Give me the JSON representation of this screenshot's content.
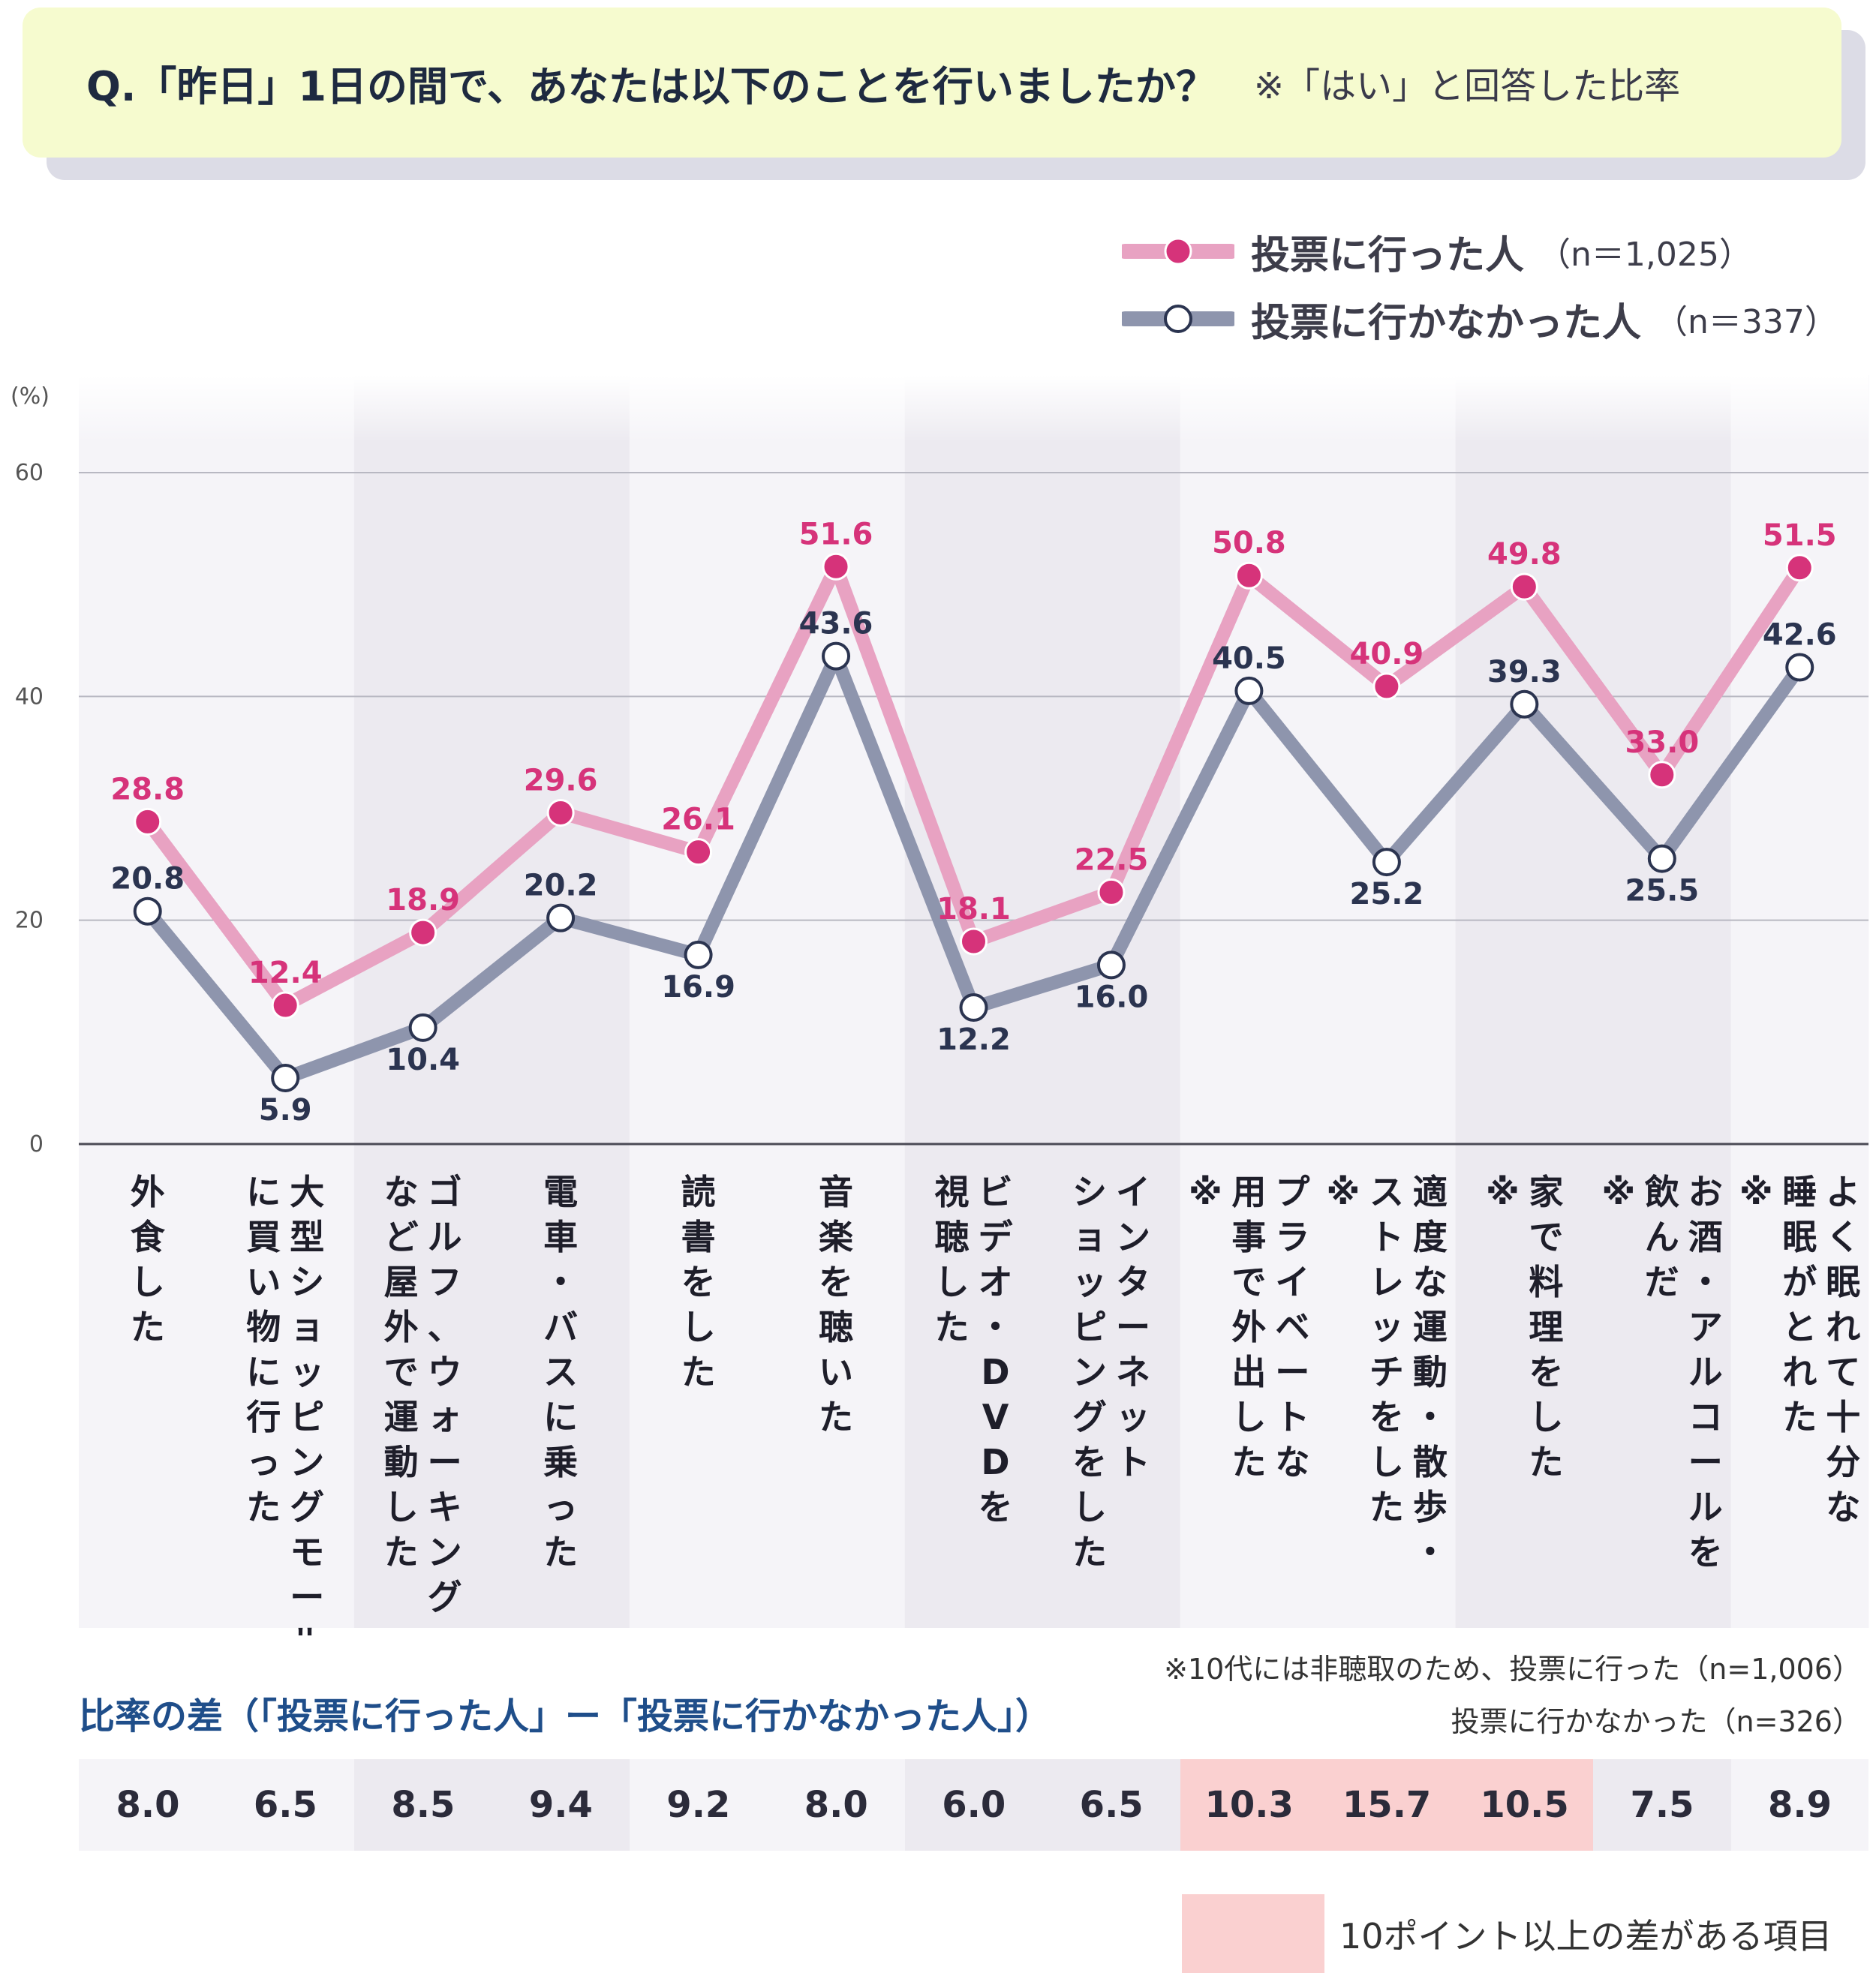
{
  "question": {
    "text": "Q.「昨日」1日の間で、あなたは以下のことを行いましたか？",
    "note": "※「はい」と回答した比率"
  },
  "legend": {
    "voted": {
      "label": "投票に行った人",
      "n": "（n＝1,025）"
    },
    "not_voted": {
      "label": "投票に行かなかった人",
      "n": "（n＝337）"
    }
  },
  "colors": {
    "voted_line": "#e8a2c2",
    "voted_marker": "#d6337a",
    "voted_label": "#d6337a",
    "not_voted_line": "#8e95ad",
    "not_voted_label": "#2b3450",
    "band": "#eceaf0",
    "band_light": "#f5f4f8",
    "highlight": "#fad0d0"
  },
  "chart_data": {
    "type": "line",
    "ylabel": "(%)",
    "ylim": [
      0,
      60
    ],
    "yticks": [
      0,
      20,
      40,
      60
    ],
    "grid": true,
    "categories": [
      "外食した",
      "大型ショッピングモールに買い物に行った",
      "ゴルフ、ウォーキングなど屋外で運動した",
      "電車・バスに乗った",
      "読書をした",
      "音楽を聴いた",
      "ビデオ・DVDを視聴した",
      "インターネットショッピングをした",
      "プライベートな用事で外出した※",
      "適度な運動・散歩・ストレッチをした※",
      "家で料理をした※",
      "お酒・アルコールを飲んだ※",
      "よく眠れて十分な睡眠がとれた※"
    ],
    "category_lines": [
      [
        "外食した"
      ],
      [
        "大型ショッピングモール",
        "に買い物に行った"
      ],
      [
        "ゴルフ、ウォーキング",
        "など屋外で運動した"
      ],
      [
        "電車・バスに乗った"
      ],
      [
        "読書をした"
      ],
      [
        "音楽を聴いた"
      ],
      [
        "ビデオ・DVDを",
        "視聴した"
      ],
      [
        "インターネット",
        "ショッピングをした"
      ],
      [
        "プライベートな",
        "用事で外出した",
        "※"
      ],
      [
        "適度な運動・散歩・",
        "ストレッチをした",
        "※"
      ],
      [
        "家で料理をした",
        "※"
      ],
      [
        "お酒・アルコールを",
        "飲んだ",
        "※"
      ],
      [
        "よく眠れて十分な",
        "睡眠がとれた",
        "※"
      ]
    ],
    "series": [
      {
        "name": "投票に行った人（n＝1,025）",
        "values": [
          28.8,
          12.4,
          18.9,
          29.6,
          26.1,
          51.6,
          18.1,
          22.5,
          50.8,
          40.9,
          49.8,
          33.0,
          51.5
        ]
      },
      {
        "name": "投票に行かなかった人（n＝337）",
        "values": [
          20.8,
          5.9,
          10.4,
          20.2,
          16.9,
          43.6,
          12.2,
          16.0,
          40.5,
          25.2,
          39.3,
          25.5,
          42.6
        ]
      }
    ],
    "voted_labels": [
      "28.8",
      "12.4",
      "18.9",
      "29.6",
      "26.1",
      "51.6",
      "18.1",
      "22.5",
      "50.8",
      "40.9",
      "49.8",
      "33.0",
      "51.5"
    ],
    "not_voted_labels": [
      "20.8",
      "5.9",
      "10.4",
      "20.2",
      "16.9",
      "43.6",
      "12.2",
      "16.0",
      "40.5",
      "25.2",
      "39.3",
      "25.5",
      "42.6"
    ],
    "difference": {
      "title": "比率の差（「投票に行った人」ー「投票に行かなかった人」）",
      "values": [
        "8.0",
        "6.5",
        "8.5",
        "9.4",
        "9.2",
        "8.0",
        "6.0",
        "6.5",
        "10.3",
        "15.7",
        "10.5",
        "7.5",
        "8.9"
      ],
      "highlight": [
        false,
        false,
        false,
        false,
        false,
        false,
        false,
        false,
        true,
        true,
        true,
        false,
        false
      ]
    }
  },
  "footnote": {
    "line1": "※10代には非聴取のため、投票に行った（n=1,006）",
    "line2": "投票に行かなかった（n=326）"
  },
  "highlight_legend": "10ポイント以上の差がある項目"
}
